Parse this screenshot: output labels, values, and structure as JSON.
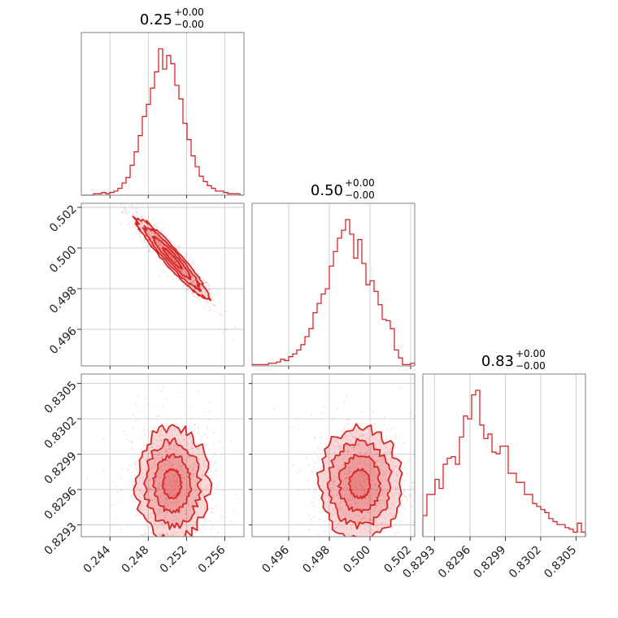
{
  "chart_data": {
    "type": "corner",
    "color": "#d62728",
    "parameters": [
      {
        "title": "0.25",
        "err_plus": "+0.00",
        "err_minus": "−0.00",
        "range": [
          0.241,
          0.258
        ],
        "ticks": [
          0.244,
          0.248,
          0.252,
          0.256
        ],
        "tick_labels": [
          "0.244",
          "0.248",
          "0.252",
          "0.256"
        ],
        "mean": 0.2505,
        "std": 0.0019
      },
      {
        "title": "0.50",
        "err_plus": "+0.00",
        "err_minus": "−0.00",
        "range": [
          0.4942,
          0.5022
        ],
        "ticks": [
          0.496,
          0.498,
          0.5,
          0.502
        ],
        "tick_labels": [
          "0.496",
          "0.498",
          "0.500",
          "0.502"
        ],
        "mean": 0.4995,
        "std": 0.001
      },
      {
        "title": "0.83",
        "err_plus": "+0.00",
        "err_minus": "−0.00",
        "range": [
          0.8292,
          0.83058
        ],
        "ticks": [
          0.8293,
          0.8296,
          0.8299,
          0.8302,
          0.8305
        ],
        "tick_labels": [
          "0.8293",
          "0.8296",
          "0.8299",
          "0.8302",
          "0.8305"
        ],
        "mean": 0.82965,
        "std": 0.00024
      }
    ],
    "histograms": [
      {
        "param": 0,
        "bins": 40,
        "counts": [
          0,
          0,
          0,
          1,
          1,
          2,
          1,
          2,
          3,
          5,
          9,
          13,
          22,
          32,
          44,
          58,
          67,
          79,
          91,
          108,
          93,
          103,
          97,
          81,
          71,
          53,
          41,
          29,
          21,
          14,
          10,
          7,
          5,
          3,
          3,
          2,
          1,
          1,
          1,
          0
        ]
      },
      {
        "param": 1,
        "bins": 40,
        "counts": [
          1,
          1,
          1,
          1,
          2,
          2,
          3,
          5,
          4,
          7,
          9,
          12,
          16,
          22,
          28,
          40,
          47,
          54,
          58,
          75,
          86,
          96,
          102,
          110,
          99,
          81,
          95,
          77,
          61,
          64,
          56,
          46,
          35,
          34,
          28,
          12,
          6,
          1,
          1,
          2
        ]
      },
      {
        "param": 2,
        "bins": 40,
        "counts": [
          14,
          28,
          28,
          38,
          32,
          48,
          52,
          53,
          48,
          66,
          80,
          78,
          94,
          97,
          74,
          65,
          68,
          56,
          55,
          60,
          60,
          42,
          42,
          36,
          36,
          28,
          28,
          22,
          20,
          18,
          16,
          12,
          10,
          8,
          8,
          6,
          5,
          3,
          9,
          3
        ]
      }
    ],
    "pairs": [
      {
        "x_param": 0,
        "y_param": 1,
        "correlation": -0.95
      },
      {
        "x_param": 0,
        "y_param": 2,
        "correlation": 0.0
      },
      {
        "x_param": 1,
        "y_param": 2,
        "correlation": 0.0
      }
    ],
    "grid": true
  }
}
